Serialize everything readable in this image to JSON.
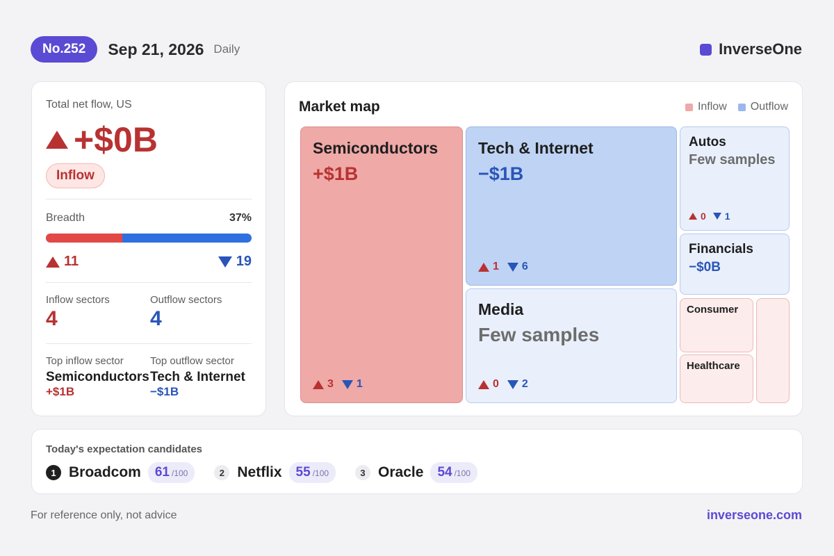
{
  "header": {
    "issue": "No.252",
    "date": "Sep 21, 2026",
    "frequency": "Daily",
    "brand": "InverseOne",
    "brand_color": "#5b4ad3"
  },
  "summary": {
    "total_label": "Total net flow, US",
    "total_value": "+$0B",
    "flow_status": "Inflow",
    "breadth_label": "Breadth",
    "breadth_pct": "37%",
    "breadth_fraction": 0.37,
    "up_count": "11",
    "down_count": "19",
    "inflow_sectors_label": "Inflow sectors",
    "inflow_sectors": "4",
    "outflow_sectors_label": "Outflow sectors",
    "outflow_sectors": "4",
    "top_inflow_label": "Top inflow sector",
    "top_inflow_name": "Semiconductors",
    "top_inflow_value": "+$1B",
    "top_outflow_label": "Top outflow sector",
    "top_outflow_name": "Tech & Internet",
    "top_outflow_value": "−$1B"
  },
  "market_map": {
    "title": "Market map",
    "legend_inflow": "Inflow",
    "legend_outflow": "Outflow",
    "inflow_color": "#efa9a7",
    "outflow_color": "#9ab8ee",
    "tiles": {
      "semis": {
        "name": "Semiconductors",
        "value": "+$1B",
        "up": "3",
        "down": "1"
      },
      "tech": {
        "name": "Tech & Internet",
        "value": "−$1B",
        "up": "1",
        "down": "6"
      },
      "media": {
        "name": "Media",
        "value": "Few samples",
        "up": "0",
        "down": "2"
      },
      "autos": {
        "name": "Autos",
        "value": "Few samples",
        "up": "0",
        "down": "1"
      },
      "financials": {
        "name": "Financials",
        "value": "−$0B"
      },
      "consumer": {
        "name": "Consumer"
      },
      "healthcare": {
        "name": "Healthcare"
      }
    }
  },
  "candidates": {
    "title": "Today's expectation candidates",
    "denominator": "/100",
    "items": [
      {
        "rank": "1",
        "name": "Broadcom",
        "score": "61"
      },
      {
        "rank": "2",
        "name": "Netflix",
        "score": "55"
      },
      {
        "rank": "3",
        "name": "Oracle",
        "score": "54"
      }
    ]
  },
  "footer": {
    "disclaimer": "For reference only, not advice",
    "url": "inverseone.com"
  }
}
